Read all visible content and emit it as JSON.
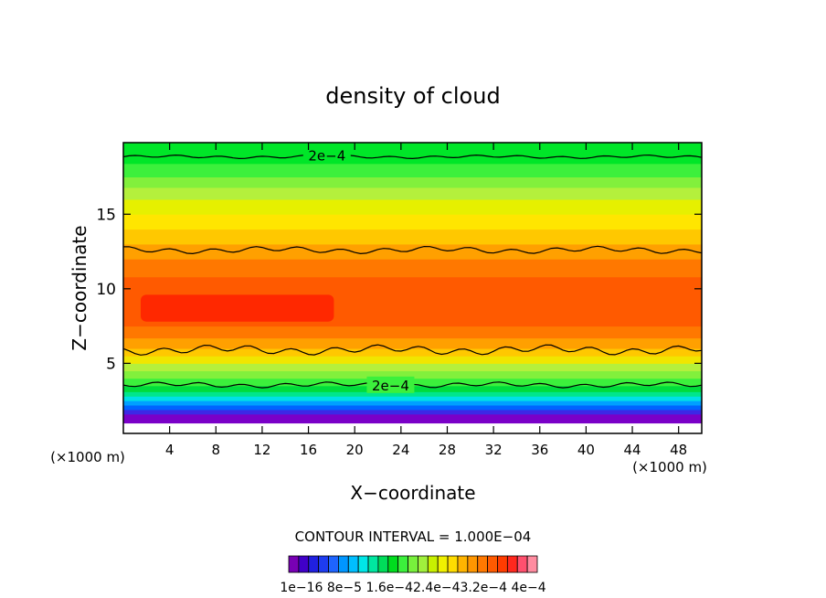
{
  "chart_data": {
    "type": "heatmap",
    "title": "density of cloud",
    "xlabel": "X−coordinate",
    "ylabel": "Z−coordinate",
    "x_unit_left": "(×1000 m)",
    "x_unit_right": "(×1000 m)",
    "xlim": [
      0,
      50
    ],
    "ylim": [
      0.3,
      19.8
    ],
    "xticks": [
      4,
      8,
      12,
      16,
      20,
      24,
      28,
      32,
      36,
      40,
      44,
      48
    ],
    "yticks": [
      5,
      10,
      15
    ],
    "contour_interval_label": "CONTOUR INTERVAL = 1.000E−04",
    "contour_labels": [
      {
        "text": "2e−4",
        "x": 17.6,
        "z": 18.9
      },
      {
        "text": "2e−4",
        "x": 23.1,
        "z": 3.5
      }
    ],
    "contours": [
      {
        "level": "2e-4",
        "z_base": 18.85,
        "amplitude": 0.12
      },
      {
        "level": "3e-4",
        "z_base": 12.6,
        "amplitude": 0.25
      },
      {
        "level": "3e-4",
        "z_base": 5.9,
        "amplitude": 0.35
      },
      {
        "level": "2e-4",
        "z_base": 3.55,
        "amplitude": 0.2
      }
    ],
    "vertical_profile": [
      {
        "z_from": 0.3,
        "z_to": 1.0,
        "color": "#ffffff"
      },
      {
        "z_from": 1.0,
        "z_to": 1.6,
        "color": "#7a00c8"
      },
      {
        "z_from": 1.6,
        "z_to": 1.9,
        "color": "#3c28e6"
      },
      {
        "z_from": 1.9,
        "z_to": 2.2,
        "color": "#0064ff"
      },
      {
        "z_from": 2.2,
        "z_to": 2.5,
        "color": "#00a0ff"
      },
      {
        "z_from": 2.5,
        "z_to": 2.8,
        "color": "#00e0e6"
      },
      {
        "z_from": 2.8,
        "z_to": 3.1,
        "color": "#00e68c"
      },
      {
        "z_from": 3.1,
        "z_to": 3.5,
        "color": "#00dc3c"
      },
      {
        "z_from": 3.5,
        "z_to": 4.0,
        "color": "#3cf03c"
      },
      {
        "z_from": 4.0,
        "z_to": 4.5,
        "color": "#82f03c"
      },
      {
        "z_from": 4.5,
        "z_to": 5.0,
        "color": "#b4f03c"
      },
      {
        "z_from": 5.0,
        "z_to": 5.5,
        "color": "#f0e600"
      },
      {
        "z_from": 5.5,
        "z_to": 6.0,
        "color": "#ffc800"
      },
      {
        "z_from": 6.0,
        "z_to": 6.7,
        "color": "#ffa000"
      },
      {
        "z_from": 6.7,
        "z_to": 7.5,
        "color": "#ff7800"
      },
      {
        "z_from": 7.5,
        "z_to": 10.8,
        "color": "#ff5a00"
      },
      {
        "z_from": 10.8,
        "z_to": 12.0,
        "color": "#ff7800"
      },
      {
        "z_from": 12.0,
        "z_to": 13.0,
        "color": "#ffa000"
      },
      {
        "z_from": 13.0,
        "z_to": 14.0,
        "color": "#ffc800"
      },
      {
        "z_from": 14.0,
        "z_to": 15.0,
        "color": "#ffe600"
      },
      {
        "z_from": 15.0,
        "z_to": 16.0,
        "color": "#e6f000"
      },
      {
        "z_from": 16.0,
        "z_to": 16.8,
        "color": "#b4f03c"
      },
      {
        "z_from": 16.8,
        "z_to": 17.5,
        "color": "#82f03c"
      },
      {
        "z_from": 17.5,
        "z_to": 18.4,
        "color": "#3cf03c"
      },
      {
        "z_from": 18.4,
        "z_to": 19.8,
        "color": "#00e628"
      }
    ],
    "core_region": {
      "x_from": 1.5,
      "x_to": 18.2,
      "z_from": 7.8,
      "z_to": 9.6,
      "color": "#ff2800"
    },
    "colorbar": {
      "colors": [
        "#7800b4",
        "#4000c8",
        "#2020e0",
        "#1e3cf0",
        "#1e64ff",
        "#0096ff",
        "#00beff",
        "#00e6e6",
        "#00e6a0",
        "#00dc5a",
        "#00dc1e",
        "#3cf03c",
        "#78f03c",
        "#a0f03c",
        "#c8f000",
        "#f0f000",
        "#ffdc00",
        "#ffb400",
        "#ff9600",
        "#ff7800",
        "#ff5a00",
        "#ff3c00",
        "#ff281e",
        "#ff506e",
        "#ff8ca0"
      ],
      "tick_labels_text": "1e−16 8e−5 1.6e−42.4e−43.2e−4 4e−4"
    }
  }
}
